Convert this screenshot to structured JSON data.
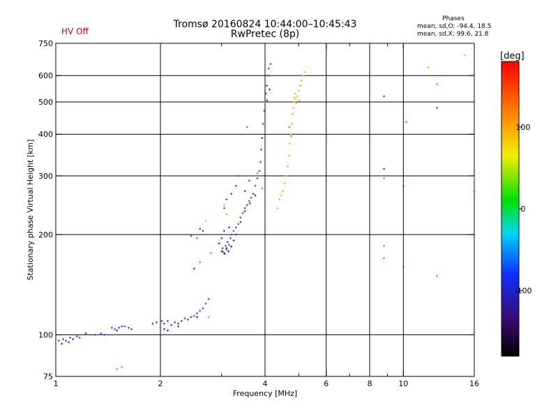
{
  "header": {
    "title_line1": "Tromsø 20160824 10:44:00–10:45:43",
    "title_line2": "RwPretec (8p)",
    "hv_status": "HV Off"
  },
  "phase_info": {
    "title": "Phases",
    "o_line": "mean, sd,O: -94.4, 18.5",
    "x_line": "mean, sd,X:  99.6, 21.8"
  },
  "colorbar": {
    "label": "[deg]",
    "ticks": [
      100,
      0,
      -100
    ],
    "range": [
      -180,
      180
    ]
  },
  "chart_data": {
    "type": "scatter",
    "xlabel": "Frequency [MHz]",
    "ylabel": "Stationary phase Virtual Height [km]",
    "xscale": "log",
    "yscale": "log",
    "xlim": [
      1,
      16
    ],
    "ylim": [
      75,
      750
    ],
    "xticks": [
      1,
      2,
      4,
      6,
      8,
      10,
      16
    ],
    "xticks_minor": [
      3,
      5,
      7,
      9
    ],
    "yticks": [
      75,
      100,
      200,
      300,
      400,
      500,
      600,
      750
    ],
    "grid": true,
    "series": [
      {
        "color": "#1a3ce6",
        "points": [
          [
            1.02,
            96
          ],
          [
            1.05,
            97
          ],
          [
            1.07,
            96
          ],
          [
            1.1,
            98
          ],
          [
            1.12,
            97
          ],
          [
            1.15,
            99
          ],
          [
            1.17,
            98
          ],
          [
            1.3,
            100
          ],
          [
            1.35,
            101
          ],
          [
            1.38,
            100
          ],
          [
            1.45,
            105
          ],
          [
            1.48,
            104
          ],
          [
            1.52,
            105
          ],
          [
            1.55,
            106
          ],
          [
            1.58,
            106
          ],
          [
            1.62,
            105
          ],
          [
            1.65,
            104
          ],
          [
            1.9,
            108
          ],
          [
            1.95,
            109
          ],
          [
            2.0,
            105
          ],
          [
            2.02,
            110
          ],
          [
            2.05,
            108
          ],
          [
            2.1,
            110
          ],
          [
            2.15,
            107
          ],
          [
            2.2,
            109
          ],
          [
            2.25,
            108
          ],
          [
            2.3,
            110
          ],
          [
            2.35,
            112
          ],
          [
            2.4,
            111
          ],
          [
            2.45,
            113
          ],
          [
            2.5,
            114
          ],
          [
            2.55,
            116
          ],
          [
            2.6,
            118
          ],
          [
            2.65,
            120
          ],
          [
            2.7,
            124
          ],
          [
            2.75,
            128
          ],
          [
            2.45,
            198
          ],
          [
            2.6,
            208
          ],
          [
            2.65,
            205
          ],
          [
            3.0,
            178
          ],
          [
            3.02,
            182
          ],
          [
            3.05,
            176
          ],
          [
            3.08,
            185
          ],
          [
            3.1,
            180
          ],
          [
            3.12,
            190
          ],
          [
            3.15,
            186
          ],
          [
            3.18,
            195
          ],
          [
            3.2,
            200
          ],
          [
            3.25,
            205
          ],
          [
            3.3,
            210
          ],
          [
            3.35,
            215
          ],
          [
            3.4,
            225
          ],
          [
            3.45,
            232
          ],
          [
            3.5,
            240
          ],
          [
            3.55,
            245
          ],
          [
            3.6,
            252
          ],
          [
            3.65,
            258
          ],
          [
            3.7,
            265
          ],
          [
            3.75,
            280
          ],
          [
            3.8,
            295
          ],
          [
            3.85,
            310
          ],
          [
            3.88,
            330
          ],
          [
            3.9,
            360
          ],
          [
            3.92,
            390
          ],
          [
            3.95,
            430
          ],
          [
            3.98,
            470
          ],
          [
            4.0,
            500
          ],
          [
            4.02,
            530
          ],
          [
            4.05,
            560
          ],
          [
            4.08,
            600
          ],
          [
            4.1,
            630
          ],
          [
            4.15,
            650
          ],
          [
            3.05,
            240
          ],
          [
            3.1,
            255
          ],
          [
            3.2,
            265
          ],
          [
            3.3,
            280
          ],
          [
            3.35,
            300
          ],
          [
            3.5,
            270
          ],
          [
            3.6,
            290
          ],
          [
            8.8,
            520
          ],
          [
            8.8,
            315
          ],
          [
            10.0,
            280
          ],
          [
            10.0,
            160
          ],
          [
            12.5,
            480
          ],
          [
            16.0,
            270
          ]
        ]
      },
      {
        "color": "#3a1478",
        "points": [
          [
            1.04,
            94
          ],
          [
            1.09,
            95
          ],
          [
            1.22,
            101
          ],
          [
            1.5,
            103
          ],
          [
            2.05,
            104
          ],
          [
            2.1,
            103
          ],
          [
            2.25,
            106
          ],
          [
            2.55,
            113
          ],
          [
            3.02,
            178
          ],
          [
            3.06,
            175
          ],
          [
            3.1,
            182
          ],
          [
            3.14,
            178
          ],
          [
            3.2,
            184
          ],
          [
            3.25,
            192
          ],
          [
            3.3,
            200
          ],
          [
            3.4,
            218
          ],
          [
            3.5,
            235
          ],
          [
            3.62,
            248
          ],
          [
            3.75,
            262
          ],
          [
            2.95,
            188
          ],
          [
            3.0,
            195
          ],
          [
            2.5,
            158
          ],
          [
            3.05,
            205
          ],
          [
            3.15,
            210
          ],
          [
            4.05,
            505
          ],
          [
            4.12,
            545
          ]
        ]
      },
      {
        "color": "#e8b800",
        "points": [
          [
            4.4,
            255
          ],
          [
            4.45,
            262
          ],
          [
            4.5,
            270
          ],
          [
            4.55,
            285
          ],
          [
            4.6,
            300
          ],
          [
            4.65,
            320
          ],
          [
            4.7,
            345
          ],
          [
            4.72,
            375
          ],
          [
            4.75,
            400
          ],
          [
            4.78,
            430
          ],
          [
            4.8,
            460
          ],
          [
            4.83,
            480
          ],
          [
            4.86,
            500
          ],
          [
            4.9,
            510
          ],
          [
            4.95,
            520
          ],
          [
            5.0,
            540
          ],
          [
            5.05,
            560
          ],
          [
            5.1,
            580
          ],
          [
            5.15,
            600
          ],
          [
            5.2,
            615
          ],
          [
            4.85,
            515
          ],
          [
            4.92,
            495
          ],
          [
            5.02,
            505
          ],
          [
            4.88,
            530
          ],
          [
            4.35,
            240
          ],
          [
            3.1,
            230
          ],
          [
            3.05,
            245
          ],
          [
            2.7,
            220
          ],
          [
            11.8,
            635
          ],
          [
            15.0,
            690
          ]
        ]
      },
      {
        "color": "#e05a00",
        "points": [
          [
            4.7,
            420
          ],
          [
            4.75,
            395
          ],
          [
            10.2,
            435
          ],
          [
            8.8,
            185
          ],
          [
            2.55,
            195
          ],
          [
            2.6,
            165
          ],
          [
            3.55,
            420
          ]
        ]
      },
      {
        "color": "#00c8d8",
        "points": [
          [
            8.8,
            170
          ],
          [
            12.5,
            150
          ],
          [
            12.5,
            565
          ],
          [
            2.8,
            176
          ],
          [
            3.8,
            305
          ],
          [
            2.75,
            113
          ],
          [
            16.0,
            295
          ]
        ]
      },
      {
        "color": "#4ac800",
        "points": [
          [
            1.5,
            79
          ],
          [
            1.55,
            80
          ],
          [
            8.8,
            295
          ],
          [
            3.92,
            275
          ]
        ]
      }
    ]
  }
}
